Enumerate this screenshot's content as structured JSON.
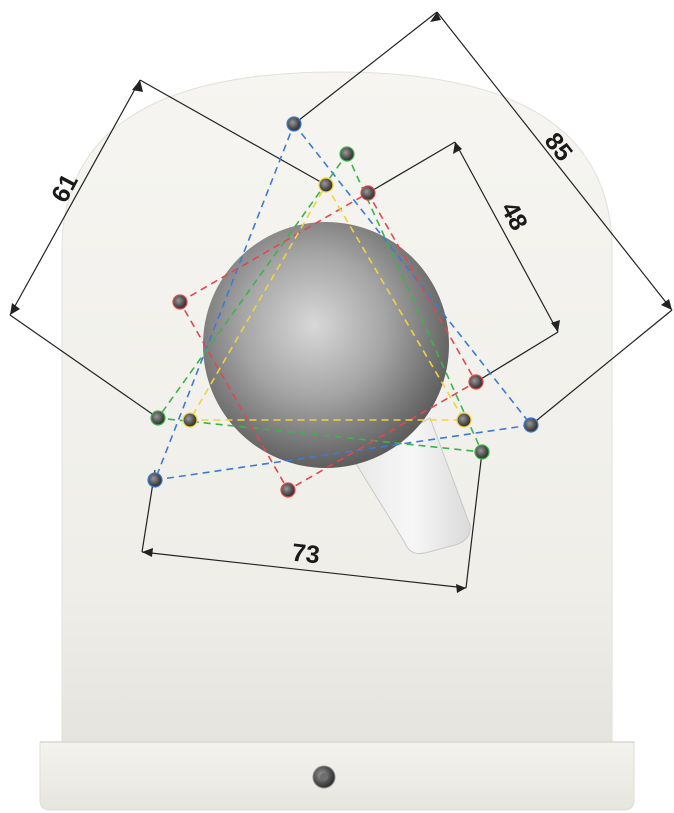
{
  "dimensions": [
    {
      "id": "dim-85",
      "label": "85"
    },
    {
      "id": "dim-61",
      "label": "61"
    },
    {
      "id": "dim-48",
      "label": "48"
    },
    {
      "id": "dim-73",
      "label": "73"
    }
  ],
  "colors": {
    "bracket": "#f2f1ec",
    "bracket_shadow": "#dedcd4",
    "sphere": "#8a8a8a",
    "dimension_line": "#222222",
    "pattern_blue": "#3d7ad6",
    "pattern_green": "#3bb44a",
    "pattern_red": "#e3474d",
    "pattern_yellow": "#f0d43a",
    "hole": "#4a4a4a"
  }
}
